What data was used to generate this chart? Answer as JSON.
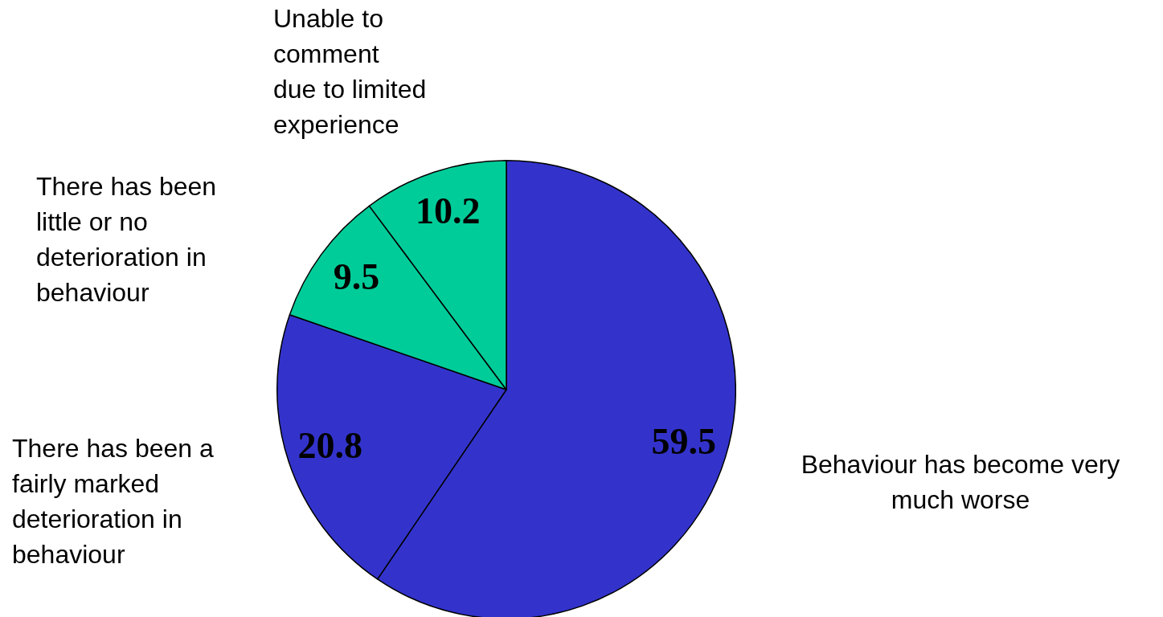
{
  "chart_data": {
    "type": "pie",
    "categories": [
      "Behaviour has become very\nmuch worse",
      "There has been a\nfairly marked\ndeterioration in\nbehaviour",
      "There has been\nlittle or no\ndeterioration in\nbehaviour",
      "Unable to\ncomment\ndue to limited\nexperience"
    ],
    "values": [
      59.5,
      20.8,
      9.5,
      10.2
    ],
    "colors": [
      "#3333cc",
      "#3333cc",
      "#00cc99",
      "#00cc99"
    ],
    "data_labels": true
  }
}
